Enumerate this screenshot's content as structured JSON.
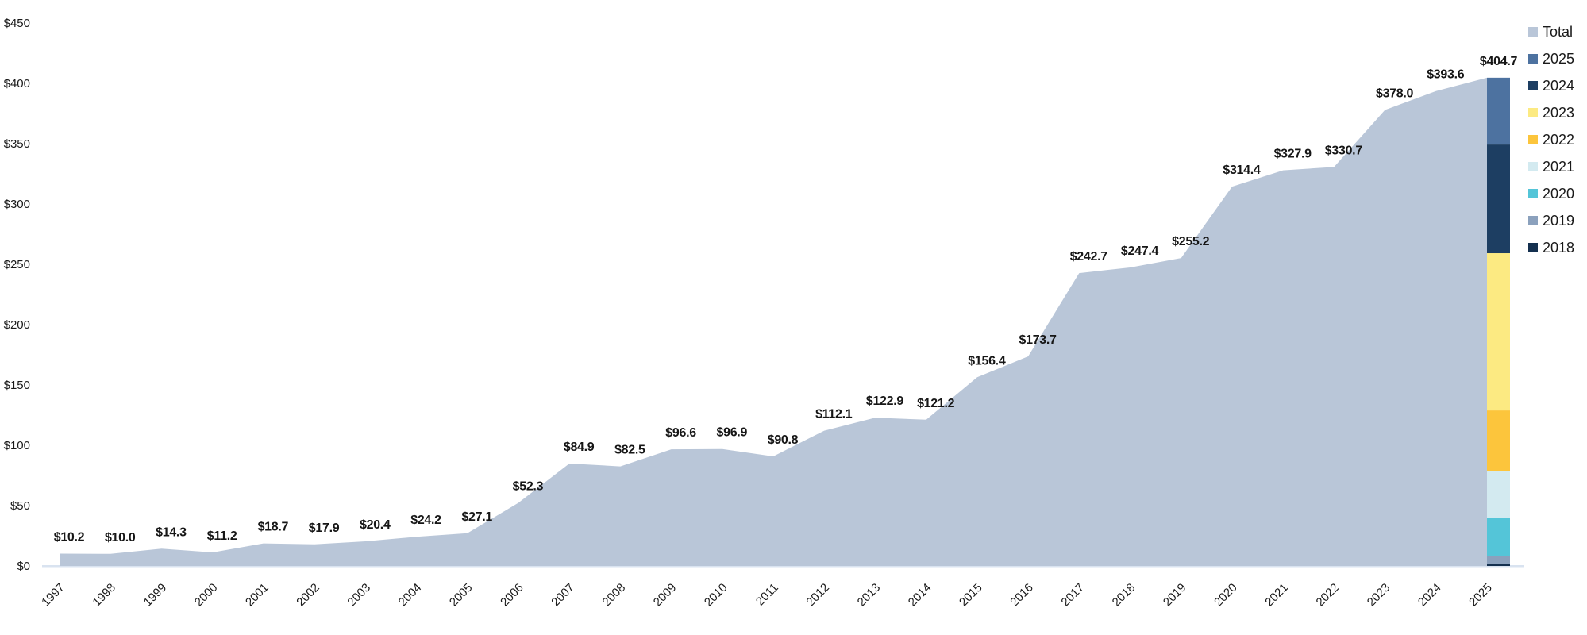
{
  "chart_data": {
    "type": "area",
    "title": "",
    "xlabel": "",
    "ylabel": "",
    "years": [
      "1997",
      "1998",
      "1999",
      "2000",
      "2001",
      "2002",
      "2003",
      "2004",
      "2005",
      "2006",
      "2007",
      "2008",
      "2009",
      "2010",
      "2011",
      "2012",
      "2013",
      "2014",
      "2015",
      "2016",
      "2017",
      "2018",
      "2019",
      "2020",
      "2021",
      "2022",
      "2023",
      "2024",
      "2025"
    ],
    "totals": [
      10.2,
      10.0,
      14.3,
      11.2,
      18.7,
      17.9,
      20.4,
      24.2,
      27.1,
      52.3,
      84.9,
      82.5,
      96.6,
      96.9,
      90.8,
      112.1,
      122.9,
      121.2,
      156.4,
      173.7,
      242.7,
      247.4,
      255.2,
      314.4,
      327.9,
      330.7,
      378.0,
      393.6,
      404.7
    ],
    "point_labels": [
      "$10.2",
      "$10.0",
      "$14.3",
      "$11.2",
      "$18.7",
      "$17.9",
      "$20.4",
      "$24.2",
      "$27.1",
      "$52.3",
      "$84.9",
      "$82.5",
      "$96.6",
      "$96.9",
      "$90.8",
      "$112.1",
      "$122.9",
      "$121.2",
      "$156.4",
      "$173.7",
      "$242.7",
      "$247.4",
      "$255.2",
      "$314.4",
      "$327.9",
      "$330.7",
      "$378.0",
      "$393.6",
      "$404.7"
    ],
    "y_axis": {
      "min": 0,
      "max": 450,
      "step": 50,
      "tick_labels": [
        "$0",
        "$50",
        "$100",
        "$150",
        "$200",
        "$250",
        "$300",
        "$350",
        "$400",
        "$450"
      ]
    },
    "legend": [
      {
        "label": "Total",
        "color": "#b9c6d8"
      },
      {
        "label": "2025",
        "color": "#4d72a0"
      },
      {
        "label": "2024",
        "color": "#1d3e62"
      },
      {
        "label": "2023",
        "color": "#fcea82"
      },
      {
        "label": "2022",
        "color": "#fcc53c"
      },
      {
        "label": "2021",
        "color": "#d3eaf0"
      },
      {
        "label": "2020",
        "color": "#54c5d8"
      },
      {
        "label": "2019",
        "color": "#8ba1bd"
      },
      {
        "label": "2018",
        "color": "#14304f"
      }
    ],
    "bar_2025_breakdown": {
      "segments_bottom_up": [
        {
          "year": "2018",
          "value": 1.5,
          "color": "#14304f"
        },
        {
          "year": "2019",
          "value": 6.4,
          "color": "#8ba1bd"
        },
        {
          "year": "2020",
          "value": 32.2,
          "color": "#54c5d8"
        },
        {
          "year": "2021",
          "value": 38.8,
          "color": "#d3eaf0"
        },
        {
          "year": "2022",
          "value": 50.0,
          "color": "#fcc53c"
        },
        {
          "year": "2023",
          "value": 130.3,
          "color": "#fcea82"
        },
        {
          "year": "2024",
          "value": 90.1,
          "color": "#1d3e62"
        },
        {
          "year": "2025",
          "value": 55.4,
          "color": "#4d72a0"
        }
      ],
      "bar_total_label": "$404.7"
    },
    "layout": {
      "grid": false,
      "legend_position": "top-right",
      "area_color": "#b9c6d8",
      "axis_line_color": "#d9e3f0",
      "label_color": "#161616"
    }
  }
}
